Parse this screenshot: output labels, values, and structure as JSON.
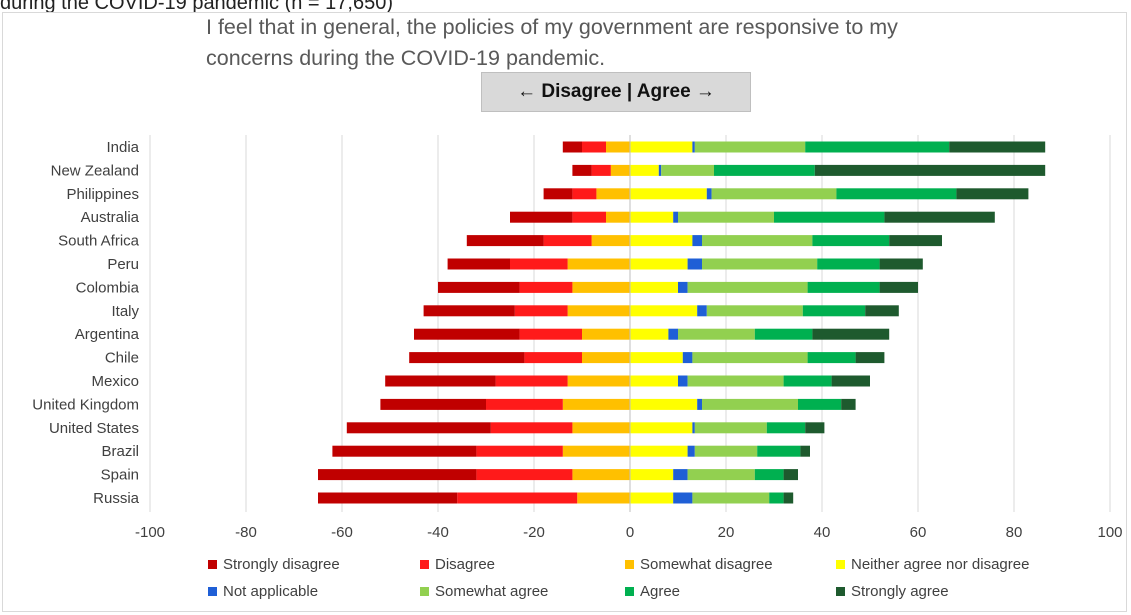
{
  "caption_fragment": "during the COVID-19 pandemic (n = 17,650)",
  "question_text": "I feel that in general, the policies of my government are responsive to my\nconcerns during the COVID-19 pandemic.",
  "direction_label": "← Disagree | Agree →",
  "colors": {
    "strongly_disagree": "#c00000",
    "disagree": "#ff1a1a",
    "somewhat_disagree": "#ffc000",
    "neither": "#ffff00",
    "not_applicable": "#1f5fd6",
    "somewhat_agree": "#92d050",
    "agree": "#00b050",
    "strongly_agree": "#1e5a2e",
    "grid": "#d9d9d9",
    "text": "#404040"
  },
  "chart_data": {
    "type": "bar",
    "orientation": "horizontal",
    "stacked": "diverging",
    "xlim": [
      -100,
      100
    ],
    "xticks": [
      -100,
      -80,
      -60,
      -40,
      -20,
      0,
      20,
      40,
      60,
      80,
      100
    ],
    "grid": "vertical",
    "legend_position": "bottom",
    "categories": [
      "India",
      "New Zealand",
      "Philippines",
      "Australia",
      "South Africa",
      "Peru",
      "Colombia",
      "Italy",
      "Argentina",
      "Chile",
      "Mexico",
      "United Kingdom",
      "United States",
      "Brazil",
      "Spain",
      "Russia"
    ],
    "series": [
      {
        "name": "Strongly disagree",
        "key": "strongly_disagree",
        "side": "negative",
        "values": [
          4,
          4,
          6,
          13,
          16,
          13,
          17,
          19,
          22,
          24,
          23,
          22,
          30,
          30,
          33,
          29
        ]
      },
      {
        "name": "Disagree",
        "key": "disagree",
        "side": "negative",
        "values": [
          5,
          4,
          5,
          7,
          10,
          12,
          11,
          11,
          13,
          12,
          15,
          16,
          17,
          18,
          20,
          25
        ]
      },
      {
        "name": "Somewhat disagree",
        "key": "somewhat_disagree",
        "side": "negative",
        "values": [
          5,
          4,
          7,
          5,
          8,
          13,
          12,
          13,
          10,
          10,
          13,
          14,
          12,
          14,
          12,
          11
        ]
      },
      {
        "name": "Neither agree nor disagree",
        "key": "neither",
        "side": "positive",
        "values": [
          13,
          6,
          16,
          9,
          13,
          12,
          10,
          14,
          8,
          11,
          10,
          14,
          13,
          12,
          9,
          9
        ]
      },
      {
        "name": "Not applicable",
        "key": "not_applicable",
        "side": "positive",
        "values": [
          0.5,
          0.5,
          1,
          1,
          2,
          3,
          2,
          2,
          2,
          2,
          2,
          1,
          0.5,
          1.5,
          3,
          4
        ]
      },
      {
        "name": "Somewhat agree",
        "key": "somewhat_agree",
        "side": "positive",
        "values": [
          23,
          11,
          26,
          20,
          23,
          24,
          25,
          20,
          16,
          24,
          20,
          20,
          15,
          13,
          14,
          16
        ]
      },
      {
        "name": "Agree",
        "key": "agree",
        "side": "positive",
        "values": [
          30,
          21,
          25,
          23,
          16,
          13,
          15,
          13,
          12,
          10,
          10,
          9,
          8,
          9,
          6,
          3
        ]
      },
      {
        "name": "Strongly agree",
        "key": "strongly_agree",
        "side": "positive",
        "values": [
          20,
          48,
          15,
          23,
          11,
          9,
          8,
          7,
          16,
          6,
          8,
          3,
          4,
          2,
          3,
          2
        ]
      }
    ]
  }
}
